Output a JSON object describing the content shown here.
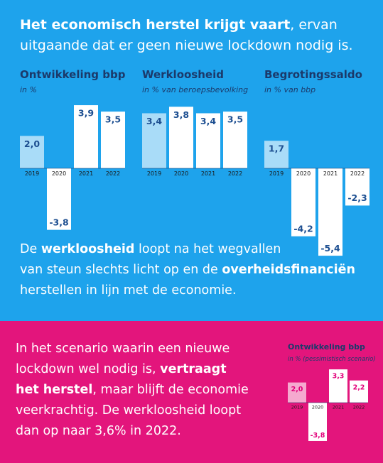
{
  "headline": {
    "lines": [
      [
        {
          "text": "Het economisch herstel krijgt vaart",
          "bold": true
        },
        {
          "text": ", ervan",
          "bold": false
        }
      ],
      [
        {
          "text": "uitgaande dat er geen nieuwe lockdown nodig is.",
          "bold": false
        }
      ]
    ]
  },
  "middle_text": {
    "lines": [
      [
        {
          "text": "De ",
          "bold": false
        },
        {
          "text": "werkloosheid",
          "bold": true
        },
        {
          "text": " loopt na het wegvallen",
          "bold": false
        }
      ],
      [
        {
          "text": "van steun slechts licht op en de ",
          "bold": false
        },
        {
          "text": "overheidsfinanciën",
          "bold": true
        }
      ],
      [
        {
          "text": "herstellen in lijn met de economie.",
          "bold": false
        }
      ]
    ]
  },
  "bottom_text": {
    "lines": [
      [
        {
          "text": "In het scenario waarin een nieuwe",
          "bold": false
        }
      ],
      [
        {
          "text": "lockdown wel nodig is, ",
          "bold": false
        },
        {
          "text": "vertraagt",
          "bold": true
        }
      ],
      [
        {
          "text": "het herstel",
          "bold": true
        },
        {
          "text": ", maar blijft de economie",
          "bold": false
        }
      ],
      [
        {
          "text": "veerkrachtig. De werkloosheid loopt",
          "bold": false
        }
      ],
      [
        {
          "text": "dan op naar 3,6% in 2022.",
          "bold": false
        }
      ]
    ]
  },
  "chart_data": [
    {
      "type": "bar",
      "title": "Ontwikkeling bbp",
      "subtitle": "in %",
      "categories": [
        "2019",
        "2020",
        "2021",
        "2022"
      ],
      "values": [
        2.0,
        -3.8,
        3.9,
        3.5
      ],
      "value_labels": [
        "2,0",
        "-3,8",
        "3,9",
        "3,5"
      ],
      "colors": [
        "#a9dcf8",
        "#ffffff",
        "#ffffff",
        "#ffffff"
      ],
      "label_color": "#1d4f91"
    },
    {
      "type": "bar",
      "title": "Werkloosheid",
      "subtitle": "in % van beroepsbevolking",
      "categories": [
        "2019",
        "2020",
        "2021",
        "2022"
      ],
      "values": [
        3.4,
        3.8,
        3.4,
        3.5
      ],
      "value_labels": [
        "3,4",
        "3,8",
        "3,4",
        "3,5"
      ],
      "colors": [
        "#a9dcf8",
        "#ffffff",
        "#ffffff",
        "#ffffff"
      ],
      "label_color": "#1d4f91"
    },
    {
      "type": "bar",
      "title": "Begrotingssaldo",
      "subtitle": "in % van bbp",
      "categories": [
        "2019",
        "2020",
        "2021",
        "2022"
      ],
      "values": [
        1.7,
        -4.2,
        -5.4,
        -2.3
      ],
      "value_labels": [
        "1,7",
        "-4,2",
        "-5,4",
        "-2,3"
      ],
      "colors": [
        "#a9dcf8",
        "#ffffff",
        "#ffffff",
        "#ffffff"
      ],
      "label_color": "#1d4f91"
    },
    {
      "type": "bar",
      "title": "Ontwikkeling bbp",
      "subtitle": "in % (pessimistisch scenario)",
      "categories": [
        "2019",
        "2020",
        "2021",
        "2022"
      ],
      "values": [
        2.0,
        -3.8,
        3.3,
        2.2
      ],
      "value_labels": [
        "2,0",
        "-3,8",
        "3,3",
        "2,2"
      ],
      "colors": [
        "#f5a9cf",
        "#ffffff",
        "#ffffff",
        "#ffffff"
      ],
      "label_color": "#e2007a"
    }
  ]
}
